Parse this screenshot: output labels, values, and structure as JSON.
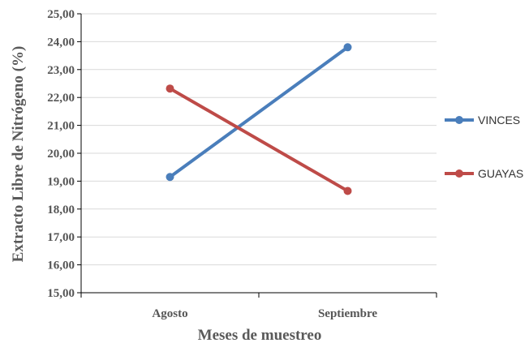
{
  "chart_data": {
    "type": "line",
    "categories": [
      "Agosto",
      "Septiembre"
    ],
    "series": [
      {
        "name": "VINCES",
        "values": [
          19.15,
          23.8
        ],
        "color": "#4a7ebb"
      },
      {
        "name": "GUAYAS",
        "values": [
          22.32,
          18.65
        ],
        "color": "#be4b48"
      }
    ],
    "xlabel": "Meses de muestreo",
    "ylabel": "Extracto Libre de Nitrógeno (%)",
    "ylim": [
      15,
      25
    ],
    "yticks": [
      "15,00",
      "16,00",
      "17,00",
      "18,00",
      "19,00",
      "20,00",
      "21,00",
      "22,00",
      "23,00",
      "24,00",
      "25,00"
    ],
    "grid": true,
    "legend": "right"
  }
}
